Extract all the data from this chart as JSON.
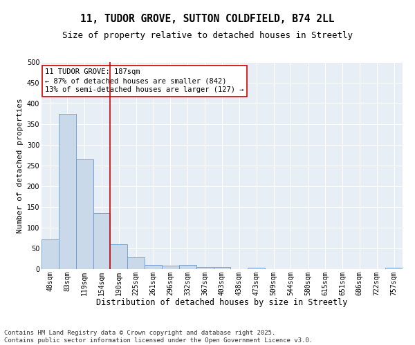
{
  "title": "11, TUDOR GROVE, SUTTON COLDFIELD, B74 2LL",
  "subtitle": "Size of property relative to detached houses in Streetly",
  "xlabel": "Distribution of detached houses by size in Streetly",
  "ylabel": "Number of detached properties",
  "categories": [
    "48sqm",
    "83sqm",
    "119sqm",
    "154sqm",
    "190sqm",
    "225sqm",
    "261sqm",
    "296sqm",
    "332sqm",
    "367sqm",
    "403sqm",
    "438sqm",
    "473sqm",
    "509sqm",
    "544sqm",
    "580sqm",
    "615sqm",
    "651sqm",
    "686sqm",
    "722sqm",
    "757sqm"
  ],
  "values": [
    72,
    375,
    265,
    135,
    60,
    28,
    10,
    8,
    10,
    5,
    5,
    0,
    3,
    0,
    0,
    0,
    0,
    0,
    0,
    0,
    3
  ],
  "bar_color": "#c9d9ea",
  "bar_edge_color": "#6699cc",
  "vline_color": "#cc0000",
  "annotation_text": "11 TUDOR GROVE: 187sqm\n← 87% of detached houses are smaller (842)\n13% of semi-detached houses are larger (127) →",
  "annotation_box_color": "#cc0000",
  "ylim": [
    0,
    500
  ],
  "yticks": [
    0,
    50,
    100,
    150,
    200,
    250,
    300,
    350,
    400,
    450,
    500
  ],
  "background_color": "#e8eef5",
  "grid_color": "#ffffff",
  "footer": "Contains HM Land Registry data © Crown copyright and database right 2025.\nContains public sector information licensed under the Open Government Licence v3.0.",
  "title_fontsize": 10.5,
  "subtitle_fontsize": 9,
  "xlabel_fontsize": 8.5,
  "ylabel_fontsize": 8,
  "tick_fontsize": 7,
  "annotation_fontsize": 7.5,
  "footer_fontsize": 6.5
}
